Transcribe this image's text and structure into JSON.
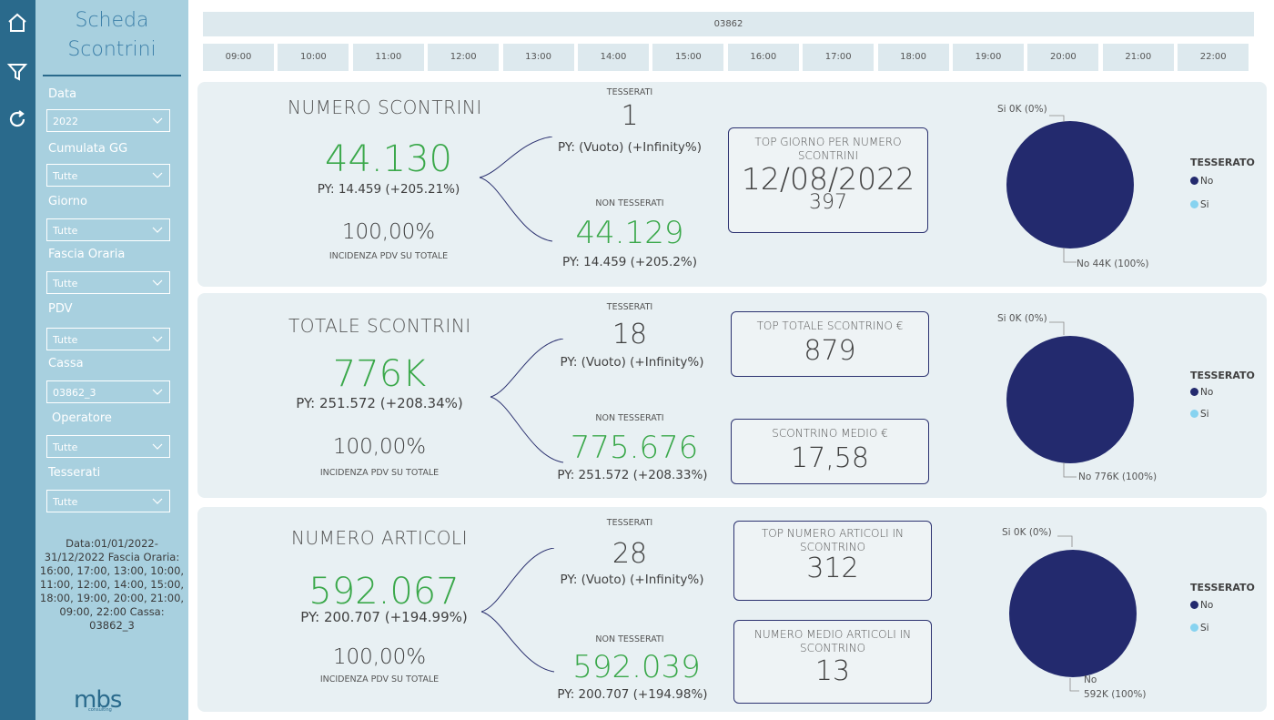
{
  "colors": {
    "navbar": "#2a6a8c",
    "filter_panel": "#a8d0df",
    "green": "#3aa84a",
    "pie_no": "#232a6e",
    "pie_si": "#87d3f0"
  },
  "nav": {
    "icons": [
      "home-icon",
      "filter-icon",
      "refresh-icon"
    ]
  },
  "filters": {
    "title_line1": "Scheda",
    "title_line2": "Scontrini",
    "items": [
      {
        "label": "Data",
        "value": "2022"
      },
      {
        "label": "Cumulata GG",
        "value": "Tutte"
      },
      {
        "label": "Giorno",
        "value": "Tutte"
      },
      {
        "label": "Fascia Oraria",
        "value": "Tutte"
      },
      {
        "label": "PDV",
        "value": "Tutte"
      },
      {
        "label": "Cassa",
        "value": "03862_3"
      },
      {
        "label": "Operatore",
        "value": "Tutte"
      },
      {
        "label": "Tesserati",
        "value": "Tutte"
      }
    ],
    "summary": "Data:01/01/2022-31/12/2022 Fascia Oraria: 16:00, 17:00, 13:00, 10:00, 11:00, 12:00, 14:00, 15:00, 18:00, 19:00, 20:00, 21:00, 09:00, 22:00 Cassa: 03862_3"
  },
  "logo": {
    "text": "mbs",
    "sub": "consulting"
  },
  "header": {
    "store": "03862",
    "hours": [
      "09:00",
      "10:00",
      "11:00",
      "12:00",
      "13:00",
      "14:00",
      "15:00",
      "16:00",
      "17:00",
      "18:00",
      "19:00",
      "20:00",
      "21:00",
      "22:00"
    ]
  },
  "cards": [
    {
      "title": "NUMERO SCONTRINI",
      "main_value": "44.130",
      "main_py": "PY: 14.459 (+205.21%)",
      "pct": "100,00%",
      "pct_caption": "INCIDENZA PDV SU TOTALE",
      "tess_caption": "TESSERATI",
      "tess_value": "1",
      "tess_py": "PY: (Vuoto) (+Infinity%)",
      "nontess_caption": "NON TESSERATI",
      "nontess_value": "44.129",
      "nontess_py": "PY: 14.459 (+205.2%)",
      "kpi": [
        {
          "label": "TOP GIORNO PER NUMERO SCONTRINI",
          "value": "12/08/2022",
          "sub": "397"
        }
      ],
      "pie": {
        "si_label": "Si 0K (0%)",
        "no_label": "No 44K (100%)",
        "no_share": 1.0,
        "si_share": 0.0
      },
      "legend": {
        "title": "TESSERATO",
        "no": "No",
        "si": "Si"
      }
    },
    {
      "title": "TOTALE SCONTRINI",
      "main_value": "776K",
      "main_py": "PY: 251.572 (+208.34%)",
      "pct": "100,00%",
      "pct_caption": "INCIDENZA PDV SU TOTALE",
      "tess_caption": "TESSERATI",
      "tess_value": "18",
      "tess_py": "PY: (Vuoto) (+Infinity%)",
      "nontess_caption": "NON TESSERATI",
      "nontess_value": "775.676",
      "nontess_py": "PY: 251.572 (+208.33%)",
      "kpi": [
        {
          "label": "TOP TOTALE SCONTRINO €",
          "value": "879"
        },
        {
          "label": "SCONTRINO MEDIO €",
          "value": "17,58"
        }
      ],
      "pie": {
        "si_label": "Si 0K (0%)",
        "no_label": "No 776K (100%)",
        "no_share": 1.0,
        "si_share": 0.0
      },
      "legend": {
        "title": "TESSERATO",
        "no": "No",
        "si": "Si"
      }
    },
    {
      "title": "NUMERO ARTICOLI",
      "main_value": "592.067",
      "main_py": "PY: 200.707 (+194.99%)",
      "pct": "100,00%",
      "pct_caption": "INCIDENZA PDV SU TOTALE",
      "tess_caption": "TESSERATI",
      "tess_value": "28",
      "tess_py": "PY: (Vuoto) (+Infinity%)",
      "nontess_caption": "NON TESSERATI",
      "nontess_value": "592.039",
      "nontess_py": "PY: 200.707 (+194.98%)",
      "kpi": [
        {
          "label": "TOP NUMERO ARTICOLI IN SCONTRINO",
          "value": "312"
        },
        {
          "label": "NUMERO MEDIO ARTICOLI IN SCONTRINO",
          "value": "13"
        }
      ],
      "pie": {
        "si_label": "Si 0K (0%)",
        "no_label_1": "No",
        "no_label_2": "592K (100%)",
        "no_share": 1.0,
        "si_share": 0.0
      },
      "legend": {
        "title": "TESSERATO",
        "no": "No",
        "si": "Si"
      }
    }
  ]
}
